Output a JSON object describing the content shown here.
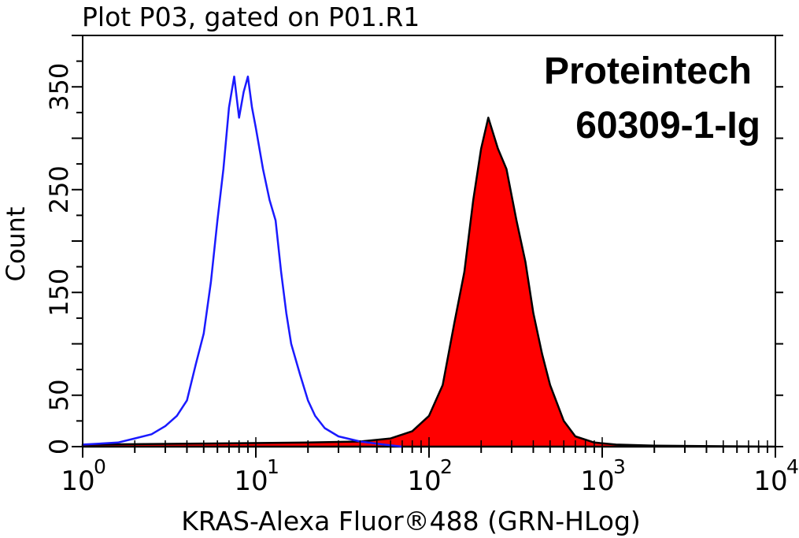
{
  "chart_data": {
    "type": "area",
    "title": "Plot P03, gated on P01.R1",
    "xlabel": "KRAS-Alexa Fluor®488 (GRN-HLog)",
    "ylabel": "Count",
    "xscale": "log",
    "xlim": [
      1,
      10000
    ],
    "ylim": [
      0,
      400
    ],
    "y_ticks": [
      0,
      50,
      150,
      250,
      350
    ],
    "x_tick_labels": [
      {
        "base": "10",
        "exp": "0"
      },
      {
        "base": "10",
        "exp": "1"
      },
      {
        "base": "10",
        "exp": "2"
      },
      {
        "base": "10",
        "exp": "3"
      },
      {
        "base": "10",
        "exp": "4"
      }
    ],
    "annotations": [
      "Proteintech",
      "60309-1-Ig"
    ],
    "grid": false,
    "series": [
      {
        "style": "outline",
        "color": "#1a1aff",
        "x": [
          1,
          1.6,
          2,
          2.5,
          3,
          3.5,
          4,
          4.5,
          5,
          5.5,
          6,
          6.5,
          7,
          7.5,
          8,
          8.5,
          9,
          9.5,
          10,
          11,
          12,
          13,
          14,
          15,
          16,
          18,
          20,
          22,
          25,
          30,
          40,
          55,
          70
        ],
        "y": [
          2,
          4,
          8,
          12,
          20,
          30,
          45,
          80,
          110,
          160,
          220,
          270,
          330,
          360,
          320,
          345,
          360,
          330,
          310,
          270,
          240,
          220,
          170,
          130,
          100,
          70,
          45,
          30,
          18,
          10,
          5,
          2,
          0
        ]
      },
      {
        "style": "filled",
        "color": "#ff0000",
        "x": [
          1,
          5,
          20,
          40,
          60,
          80,
          100,
          120,
          140,
          160,
          180,
          200,
          220,
          250,
          280,
          320,
          360,
          400,
          450,
          500,
          600,
          700,
          900,
          1200,
          2000,
          10000
        ],
        "y": [
          2,
          3,
          4,
          5,
          8,
          15,
          30,
          60,
          120,
          170,
          240,
          290,
          320,
          290,
          270,
          220,
          180,
          130,
          90,
          60,
          25,
          10,
          4,
          2,
          1,
          0
        ]
      }
    ]
  }
}
